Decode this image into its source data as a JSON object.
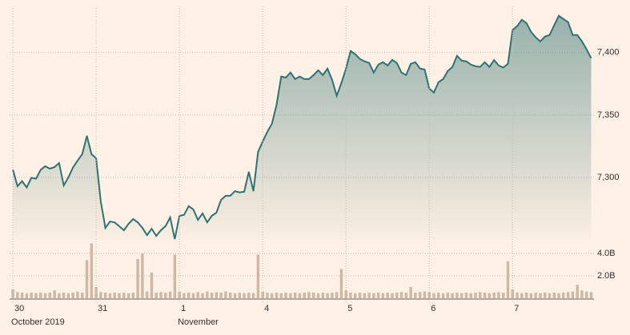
{
  "chart_data": [
    {
      "type": "area",
      "x": [
        0,
        1,
        2,
        3,
        4,
        5,
        6,
        7,
        8,
        9,
        10,
        11,
        12,
        13,
        14,
        15,
        16,
        17,
        18,
        19,
        20,
        21,
        22,
        23,
        24,
        25,
        26,
        27,
        28,
        29,
        30,
        31,
        32,
        33,
        34,
        35,
        36,
        37,
        38,
        39,
        40,
        41,
        42,
        43,
        44,
        45,
        46,
        47,
        48,
        49,
        50,
        51,
        52,
        53,
        54,
        55,
        56,
        57,
        58,
        59,
        60,
        61,
        62,
        63,
        64,
        65,
        66,
        67,
        68,
        69,
        70,
        71,
        72,
        73,
        74,
        75,
        76,
        77,
        78,
        79,
        80,
        81,
        82,
        83,
        84,
        85,
        86,
        87,
        88,
        89,
        90,
        91,
        92,
        93,
        94,
        95,
        96,
        97,
        98,
        99,
        100,
        101,
        102,
        103,
        104,
        105,
        106,
        107,
        108,
        109,
        110,
        111,
        112,
        113,
        114,
        115,
        116,
        117,
        118,
        119,
        120,
        121,
        122,
        123,
        124,
        125
      ],
      "values": [
        7306.4,
        7293,
        7297,
        7292,
        7299.7,
        7299,
        7306,
        7309,
        7307,
        7308.3,
        7311.5,
        7293.6,
        7300,
        7308,
        7313.5,
        7318.6,
        7333.3,
        7318.6,
        7315.4,
        7280.8,
        7259.6,
        7264.7,
        7264,
        7260.9,
        7257.7,
        7262.8,
        7266.7,
        7264,
        7259.6,
        7253.8,
        7258.9,
        7253.2,
        7257.7,
        7261,
        7268,
        7250.6,
        7269.2,
        7270,
        7277,
        7274.4,
        7266,
        7271.2,
        7264,
        7269.2,
        7271.8,
        7282,
        7285.3,
        7285.3,
        7289,
        7288,
        7288.5,
        7304.5,
        7289,
        7320.5,
        7328.8,
        7336.5,
        7343,
        7358.3,
        7380.8,
        7380,
        7384,
        7378.8,
        7380.8,
        7378.8,
        7378.8,
        7382,
        7385.9,
        7382,
        7387.2,
        7378.2,
        7365.4,
        7375.6,
        7387.2,
        7401.3,
        7398.7,
        7394.9,
        7393,
        7391.7,
        7384,
        7390.4,
        7392.3,
        7389.7,
        7394.2,
        7391.7,
        7384,
        7382,
        7391,
        7392.3,
        7387.2,
        7386.5,
        7371.2,
        7368,
        7376.3,
        7378.8,
        7385.3,
        7388.5,
        7397.4,
        7393.6,
        7393,
        7390.4,
        7389.1,
        7388.5,
        7392.3,
        7388.5,
        7394,
        7389.7,
        7388,
        7391,
        7418,
        7421.2,
        7426.3,
        7423.7,
        7416.7,
        7412.2,
        7409,
        7412.8,
        7414.1,
        7421.8,
        7429.5,
        7426.9,
        7424.4,
        7414.1,
        7414.1,
        7409,
        7402.6,
        7395.5
      ],
      "color": "#2e7271",
      "xlim": [
        -0.7,
        125.6
      ],
      "ylim": [
        7250,
        7437
      ],
      "yticks": [
        {
          "value": 7300,
          "label": "7,300"
        },
        {
          "value": 7350,
          "label": "7,350"
        },
        {
          "value": 7400,
          "label": "7,400"
        }
      ],
      "grid": true
    },
    {
      "type": "bar",
      "x": [
        0,
        1,
        2,
        3,
        4,
        5,
        6,
        7,
        8,
        9,
        10,
        11,
        12,
        13,
        14,
        15,
        16,
        17,
        18,
        19,
        20,
        21,
        22,
        23,
        24,
        25,
        26,
        27,
        28,
        29,
        30,
        31,
        32,
        33,
        34,
        35,
        36,
        37,
        38,
        39,
        40,
        41,
        42,
        43,
        44,
        45,
        46,
        47,
        48,
        49,
        50,
        51,
        52,
        53,
        54,
        55,
        56,
        57,
        58,
        59,
        60,
        61,
        62,
        63,
        64,
        65,
        66,
        67,
        68,
        69,
        70,
        71,
        72,
        73,
        74,
        75,
        76,
        77,
        78,
        79,
        80,
        81,
        82,
        83,
        84,
        85,
        86,
        87,
        88,
        89,
        90,
        91,
        92,
        93,
        94,
        95,
        96,
        97,
        98,
        99,
        100,
        101,
        102,
        103,
        104,
        105,
        106,
        107,
        108,
        109,
        110,
        111,
        112,
        113,
        114,
        115,
        116,
        117,
        118,
        119,
        120,
        121,
        122,
        123,
        124,
        125
      ],
      "values": [
        0.8,
        0.55,
        0.5,
        0.45,
        0.5,
        0.45,
        0.5,
        0.45,
        0.5,
        0.7,
        0.45,
        0.5,
        0.45,
        0.5,
        0.6,
        0.5,
        3.4,
        4.9,
        1.0,
        0.55,
        0.5,
        0.45,
        0.5,
        0.45,
        0.5,
        0.45,
        0.5,
        3.5,
        4.0,
        0.6,
        2.3,
        0.5,
        0.55,
        0.5,
        0.6,
        3.9,
        0.6,
        0.45,
        0.5,
        0.45,
        0.55,
        0.45,
        0.6,
        0.5,
        0.55,
        0.5,
        0.6,
        0.5,
        0.45,
        0.5,
        0.45,
        0.5,
        0.45,
        3.9,
        0.6,
        0.5,
        0.45,
        0.5,
        0.45,
        0.5,
        0.45,
        0.5,
        0.45,
        0.5,
        0.55,
        0.5,
        0.45,
        0.5,
        0.45,
        0.5,
        0.55,
        2.6,
        0.7,
        0.5,
        0.45,
        0.5,
        0.45,
        0.5,
        0.45,
        0.5,
        0.45,
        0.5,
        0.45,
        0.5,
        0.55,
        0.5,
        1.0,
        0.5,
        0.55,
        0.6,
        0.55,
        0.45,
        0.5,
        0.45,
        0.5,
        0.45,
        0.5,
        0.45,
        0.5,
        0.45,
        0.5,
        0.55,
        0.5,
        0.45,
        0.5,
        0.55,
        0.5,
        3.3,
        0.8,
        0.5,
        0.45,
        0.5,
        0.45,
        0.5,
        0.45,
        0.5,
        0.45,
        0.5,
        0.45,
        0.5,
        0.55,
        0.6,
        1.2,
        0.7,
        0.6,
        0.55
      ],
      "color": "#cdb7a6",
      "xlim": [
        -0.7,
        125.6
      ],
      "xticks": [
        {
          "value": 0,
          "label": "30"
        },
        {
          "value": 18,
          "label": "31"
        },
        {
          "value": 36,
          "label": "1"
        },
        {
          "value": 54,
          "label": "4"
        },
        {
          "value": 72,
          "label": "5"
        },
        {
          "value": 90,
          "label": "6"
        },
        {
          "value": 108,
          "label": "7"
        }
      ],
      "x_sublabels": [
        {
          "value": 0,
          "label": "October 2019"
        },
        {
          "value": 36,
          "label": "November"
        }
      ],
      "ylim": [
        0,
        5
      ],
      "yticks": [
        {
          "value": 2,
          "label": "2.0B"
        },
        {
          "value": 4,
          "label": "4.0B"
        }
      ],
      "grid": true
    }
  ]
}
